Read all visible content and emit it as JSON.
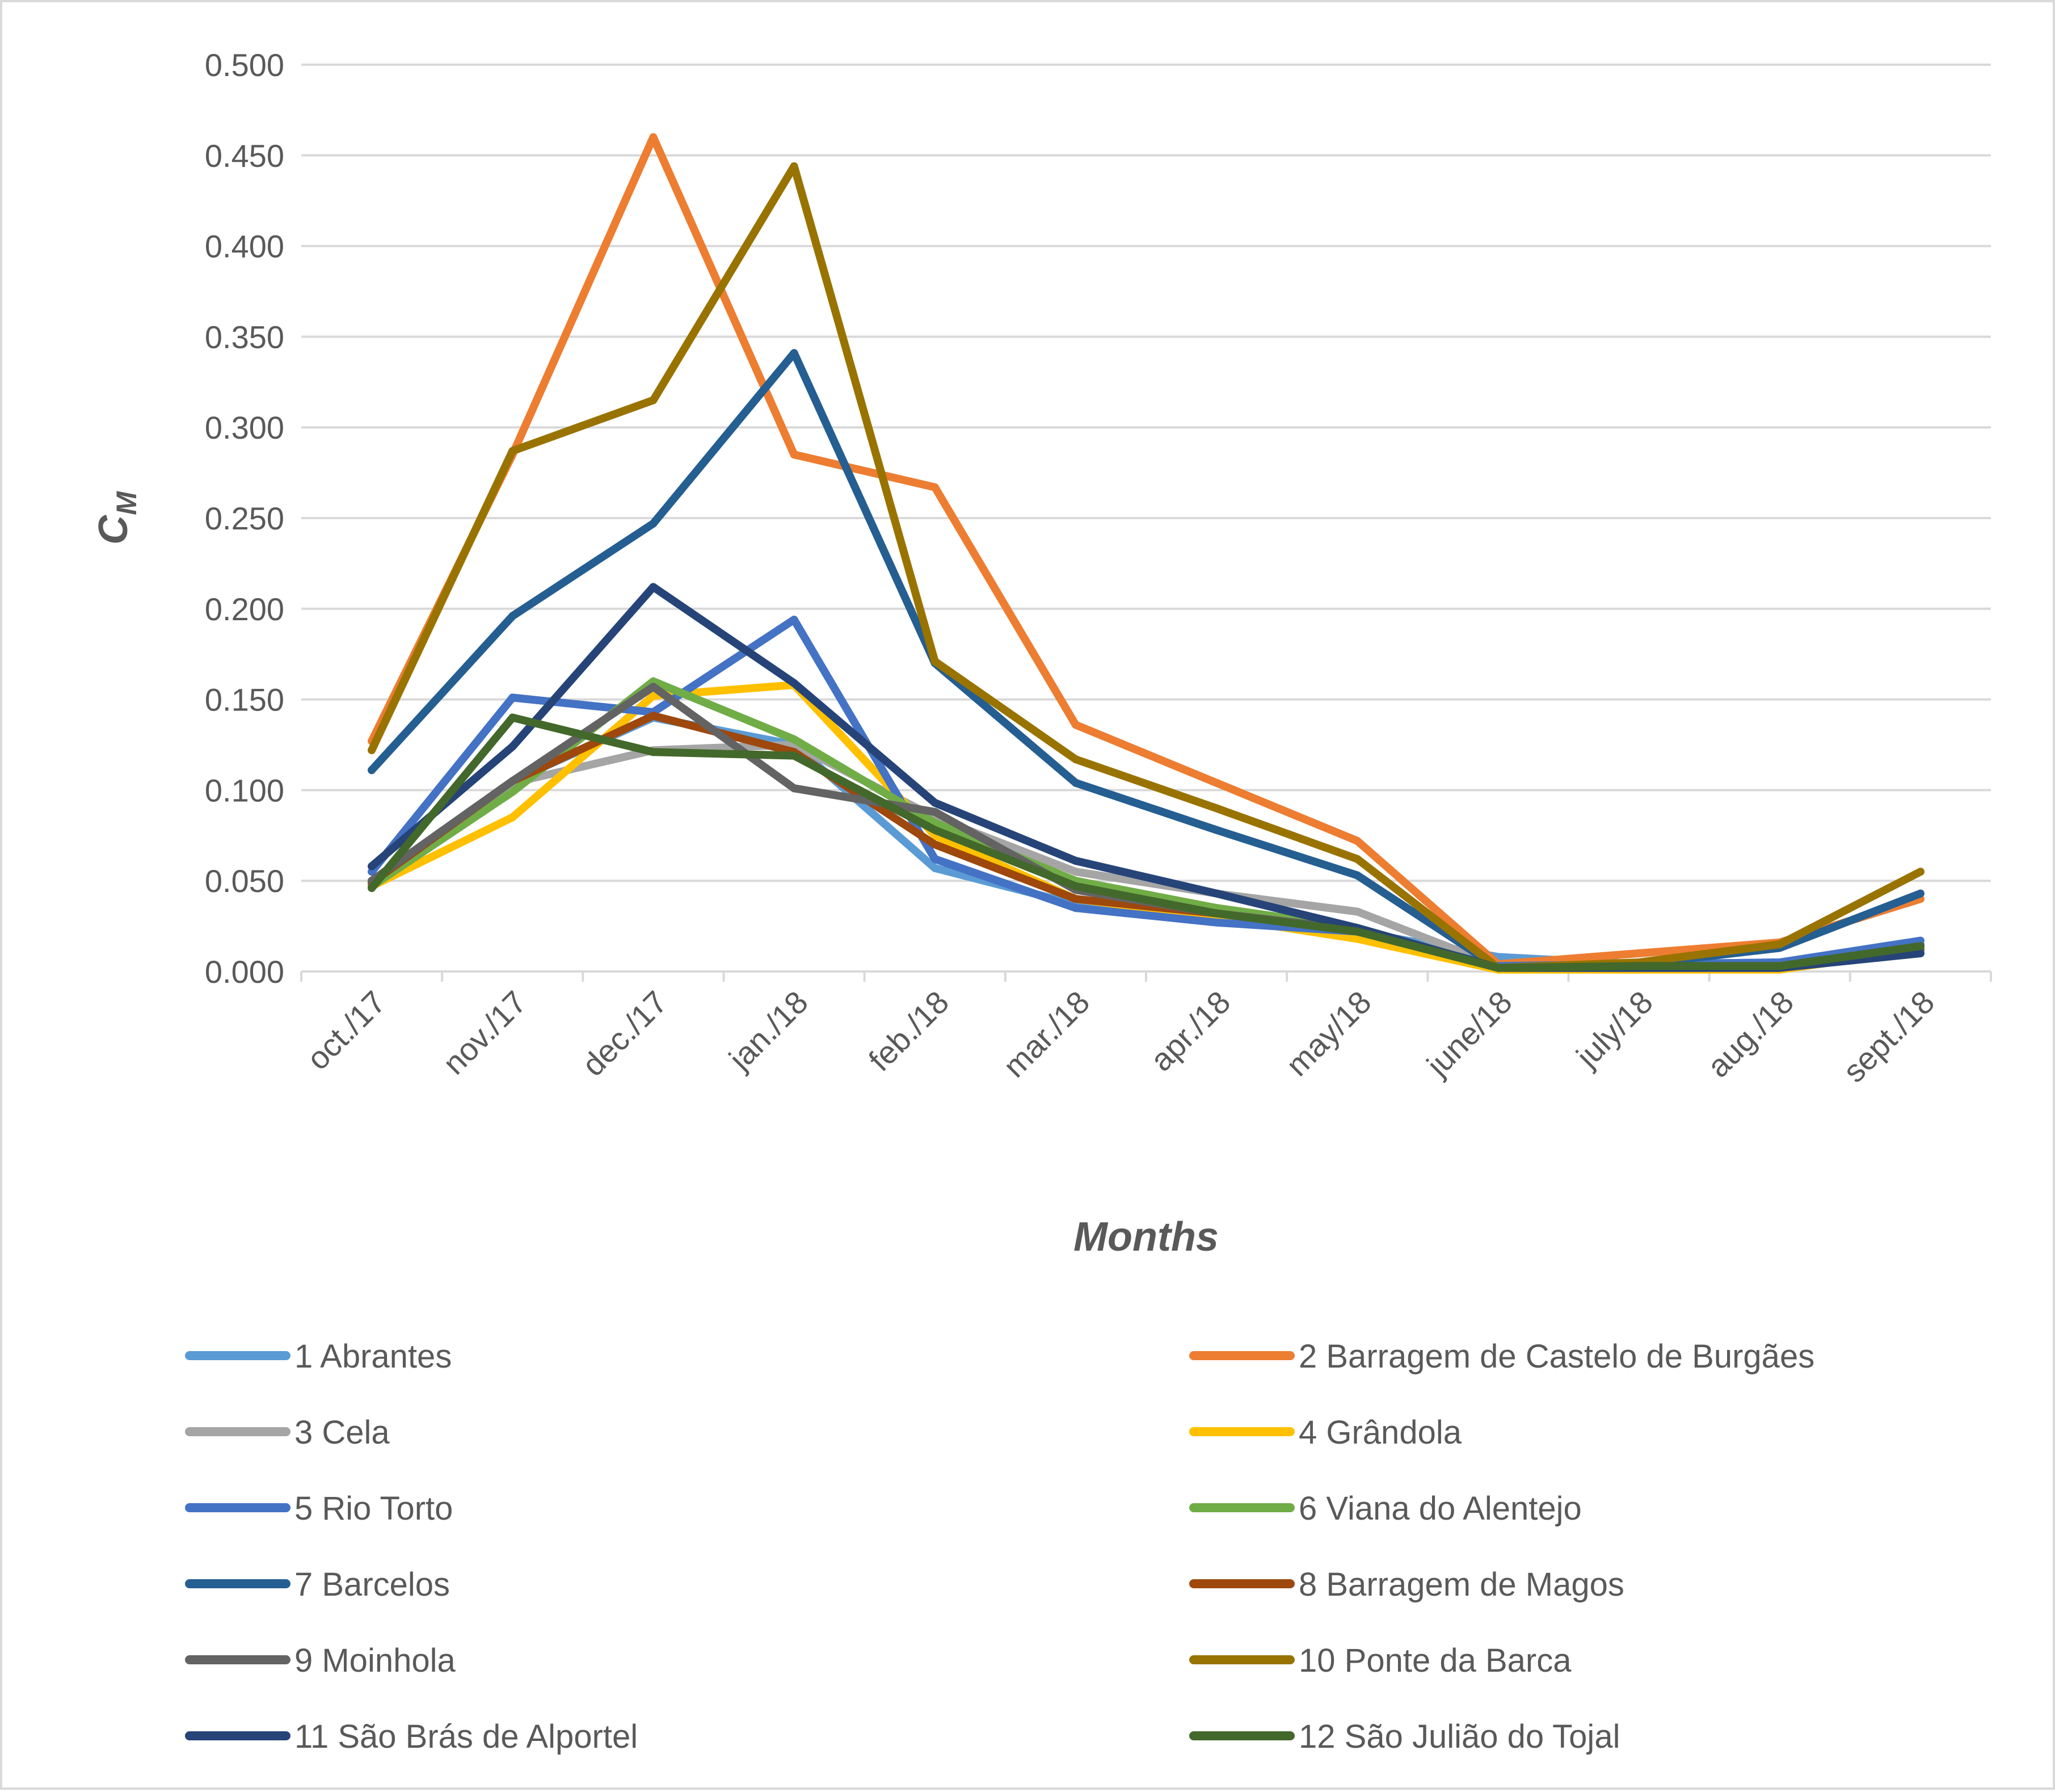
{
  "chart_data": {
    "type": "line",
    "title": "",
    "xlabel": "Months",
    "ylabel": {
      "main": "C",
      "sub": "M"
    },
    "ylim": [
      0,
      0.5
    ],
    "y_ticks": [
      "0.000",
      "0.050",
      "0.100",
      "0.150",
      "0.200",
      "0.250",
      "0.300",
      "0.350",
      "0.400",
      "0.450",
      "0.500"
    ],
    "grid": true,
    "legend_position": "bottom",
    "categories": [
      "oct./17",
      "nov./17",
      "dec./17",
      "jan./18",
      "feb./18",
      "mar./18",
      "apr./18",
      "may/18",
      "june/18",
      "july/18",
      "aug./18",
      "sept./18"
    ],
    "series": [
      {
        "name": "1 Abrantes",
        "color": "#5B9BD5",
        "values": [
          0.05,
          0.105,
          0.14,
          0.125,
          0.057,
          0.037,
          0.03,
          0.022,
          0.008,
          0.004,
          0.005,
          0.015
        ]
      },
      {
        "name": "2 Barragem de Castelo de Burgães",
        "color": "#ED7D31",
        "values": [
          0.127,
          0.285,
          0.46,
          0.285,
          0.267,
          0.136,
          0.104,
          0.072,
          0.004,
          0.01,
          0.016,
          0.04
        ]
      },
      {
        "name": "3 Cela",
        "color": "#A5A5A5",
        "values": [
          0.048,
          0.104,
          0.122,
          0.125,
          0.085,
          0.055,
          0.043,
          0.033,
          0.003,
          0.003,
          0.003,
          0.012
        ]
      },
      {
        "name": "4 Grândola",
        "color": "#FFC000",
        "values": [
          0.047,
          0.085,
          0.152,
          0.158,
          0.075,
          0.04,
          0.03,
          0.018,
          0.001,
          0.001,
          0.001,
          0.012
        ]
      },
      {
        "name": "5 Rio Torto",
        "color": "#4472C4",
        "values": [
          0.055,
          0.151,
          0.143,
          0.194,
          0.062,
          0.035,
          0.027,
          0.022,
          0.003,
          0.004,
          0.005,
          0.017
        ]
      },
      {
        "name": "6 Viana do Alentejo",
        "color": "#70AD47",
        "values": [
          0.047,
          0.099,
          0.16,
          0.128,
          0.082,
          0.05,
          0.035,
          0.024,
          0.002,
          0.002,
          0.003,
          0.013
        ]
      },
      {
        "name": "7 Barcelos",
        "color": "#255E91",
        "values": [
          0.111,
          0.196,
          0.247,
          0.341,
          0.17,
          0.104,
          0.078,
          0.053,
          0.002,
          0.004,
          0.013,
          0.043
        ]
      },
      {
        "name": "8 Barragem de Magos",
        "color": "#9E480E",
        "values": [
          0.049,
          0.105,
          0.141,
          0.121,
          0.07,
          0.04,
          0.032,
          0.023,
          0.002,
          0.002,
          0.002,
          0.012
        ]
      },
      {
        "name": "9 Moinhola",
        "color": "#636363",
        "values": [
          0.05,
          0.105,
          0.157,
          0.101,
          0.088,
          0.045,
          0.032,
          0.023,
          0.002,
          0.002,
          0.002,
          0.012
        ]
      },
      {
        "name": "10 Ponte da Barca",
        "color": "#997300",
        "values": [
          0.122,
          0.287,
          0.315,
          0.444,
          0.171,
          0.117,
          0.09,
          0.062,
          0.002,
          0.005,
          0.015,
          0.055
        ]
      },
      {
        "name": "11 São Brás de Alportel",
        "color": "#264478",
        "values": [
          0.058,
          0.124,
          0.212,
          0.159,
          0.093,
          0.061,
          0.043,
          0.024,
          0.002,
          0.002,
          0.002,
          0.01
        ]
      },
      {
        "name": "12 São Julião do Tojal",
        "color": "#43682B",
        "values": [
          0.046,
          0.14,
          0.121,
          0.119,
          0.078,
          0.047,
          0.032,
          0.022,
          0.002,
          0.003,
          0.003,
          0.014
        ]
      }
    ]
  }
}
